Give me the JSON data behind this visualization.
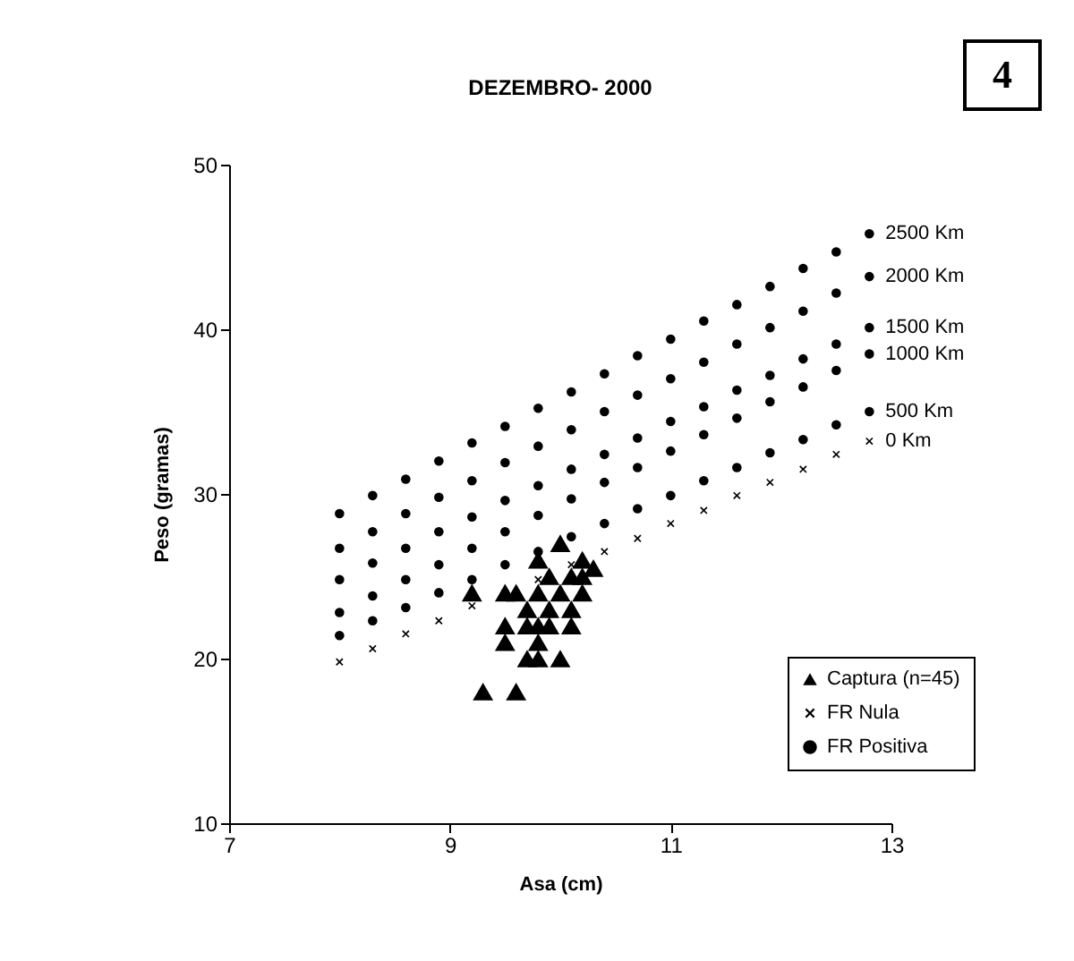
{
  "chart_data": {
    "type": "scatter",
    "title": "DEZEMBRO- 2000",
    "xlabel": "Asa (cm)",
    "ylabel": "Peso (gramas)",
    "xlim": [
      7,
      13
    ],
    "xticks": [
      7,
      9,
      11,
      13
    ],
    "ylim": [
      10,
      50
    ],
    "yticks": [
      10,
      20,
      30,
      40,
      50
    ],
    "grid": false,
    "legend": "bottom right",
    "annotations": [
      "4",
      "2500 Km",
      "2000 Km",
      "1500 Km",
      "1000 Km",
      "500 Km",
      "0 Km"
    ],
    "series": [
      {
        "name": "Captura (n=45)",
        "color": "#000000",
        "marker": "triangle",
        "x": [
          9.3,
          9.6,
          9.7,
          9.8,
          10.0,
          9.5,
          9.8,
          9.5,
          9.7,
          9.8,
          9.9,
          10.1,
          9.7,
          9.9,
          10.1,
          9.2,
          9.5,
          9.6,
          9.8,
          10.0,
          10.2,
          9.9,
          10.1,
          10.2,
          9.8,
          10.2,
          10.3,
          10.0
        ],
        "values": [
          18,
          18,
          20,
          20,
          20,
          21,
          21,
          22,
          22,
          22,
          22,
          22,
          23,
          23,
          23,
          24,
          24,
          24,
          24,
          24,
          24,
          25,
          25,
          25,
          26,
          26,
          25.5,
          27
        ]
      },
      {
        "name": "FR Nula",
        "color": "#000000",
        "marker": "cross",
        "x": [
          8,
          8.3,
          8.6,
          8.9,
          9.2,
          9.5,
          9.8,
          10.1,
          10.4,
          10.7,
          11,
          11.3,
          11.6,
          11.9,
          12.2,
          12.5,
          12.8
        ],
        "values": [
          19.8,
          20.6,
          21.5,
          22.3,
          23.2,
          24.0,
          24.8,
          25.7,
          26.5,
          27.3,
          28.2,
          29.0,
          29.9,
          30.7,
          31.5,
          32.4,
          33.2
        ]
      },
      {
        "name": "FR Positiva",
        "color": "#000000",
        "marker": "circle",
        "x": [
          8,
          8.3,
          8.6,
          8.9,
          9.2,
          9.5,
          9.8,
          10.1,
          10.4,
          10.7,
          11,
          11.3,
          11.6,
          11.9,
          12.2,
          12.5,
          12.8,
          8,
          8.3,
          8.6,
          8.9,
          9.2,
          9.5,
          9.8,
          10.1,
          10.4,
          10.7,
          11,
          11.3,
          11.6,
          11.9,
          12.2,
          12.5,
          12.8,
          8,
          8.3,
          8.6,
          8.9,
          9.2,
          9.5,
          9.8,
          10.1,
          10.4,
          10.7,
          11,
          11.3,
          11.6,
          11.9,
          12.2,
          12.5,
          12.8,
          8,
          8.3,
          8.6,
          8.9,
          9.2,
          9.5,
          9.8,
          10.1,
          10.4,
          10.7,
          11,
          11.3,
          11.6,
          11.9,
          12.2,
          12.5,
          12.8,
          8,
          8.3,
          8.6,
          8.9,
          9.2,
          9.5,
          9.8,
          10.1,
          10.4,
          10.7,
          11,
          11.3,
          11.6,
          11.9,
          12.2,
          12.5,
          12.8
        ],
        "values": [
          21.4,
          22.3,
          23.1,
          24.0,
          24.8,
          25.7,
          26.5,
          27.4,
          28.2,
          29.1,
          29.9,
          30.8,
          31.6,
          32.5,
          33.3,
          34.2,
          35.0,
          22.8,
          23.8,
          24.8,
          25.7,
          26.7,
          27.7,
          28.7,
          29.7,
          30.7,
          31.6,
          32.6,
          33.6,
          34.6,
          35.6,
          36.5,
          37.5,
          38.5,
          24.8,
          25.8,
          26.7,
          27.7,
          28.6,
          29.6,
          30.5,
          31.5,
          32.4,
          33.4,
          34.4,
          35.3,
          36.3,
          37.2,
          38.2,
          39.1,
          40.1,
          26.7,
          27.7,
          28.8,
          29.8,
          30.8,
          31.9,
          32.9,
          33.9,
          35.0,
          36.0,
          37.0,
          38.0,
          39.1,
          40.1,
          41.1,
          42.2,
          43.2,
          28.8,
          29.9,
          30.9,
          32.0,
          33.1,
          34.1,
          35.2,
          36.2,
          37.3,
          38.4,
          39.4,
          40.5,
          41.5,
          42.6,
          43.7,
          44.7,
          45.8
        ]
      }
    ]
  }
}
